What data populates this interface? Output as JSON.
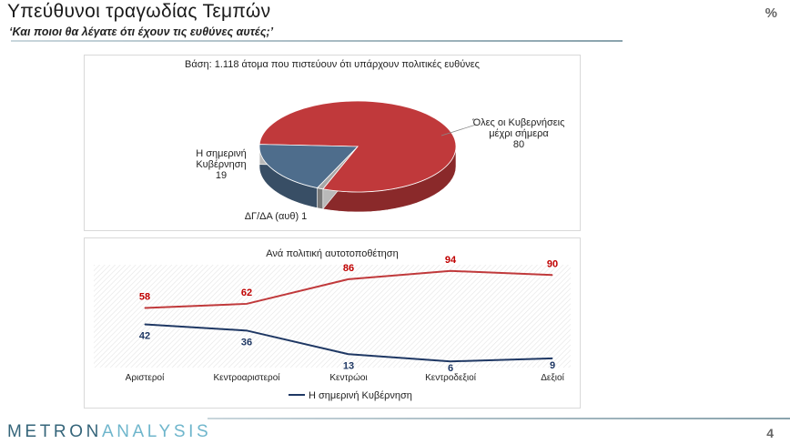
{
  "slide": {
    "title": "Υπεύθυνοι τραγωδίας Τεμπών",
    "subtitle": "‘Και ποιοι θα λέγατε ότι έχουν τις ευθύνες αυτές;’",
    "unit_mark": "%",
    "page_number": "4",
    "logo_part1": "METRON",
    "logo_part2": "ANALYSIS"
  },
  "colors": {
    "red": "#c0393b",
    "navy": "#1f3864",
    "blue_gray": "#4e6d8c",
    "accent_text_red": "#c00000"
  },
  "chart_data": [
    {
      "type": "pie",
      "subtitle": "Βάση: 1.118 άτομα που πιστεύουν ότι υπάρχουν πολιτικές ευθύνες",
      "slices": [
        {
          "label_lines": [
            "Όλες οι Κυβερνήσεις",
            "μέχρι σήμερα",
            "80"
          ],
          "value": 80,
          "color": "#c0393b"
        },
        {
          "label_lines": [
            "ΔΓ/ΔΑ (αυθ) 1"
          ],
          "value": 1,
          "color": "#a8a8a8"
        },
        {
          "label_lines": [
            "Η σημερινή",
            "Κυβέρνηση",
            "19"
          ],
          "value": 19,
          "color": "#4e6d8c"
        }
      ]
    },
    {
      "type": "line",
      "title": "Ανά πολιτική αυτοτοποθέτηση",
      "categories": [
        "Αριστεροί",
        "Κεντροαριστεροί",
        "Κεντρώοι",
        "Κεντροδεξιοί",
        "Δεξιοί"
      ],
      "series": [
        {
          "name": "",
          "color": "#c0393b",
          "values": [
            58,
            62,
            86,
            94,
            90
          ]
        },
        {
          "name": "Η σημερινή Κυβέρνηση",
          "color": "#1f3864",
          "values": [
            42,
            36,
            13,
            6,
            9
          ]
        }
      ],
      "ylim": [
        0,
        100
      ],
      "legend": "bottom"
    }
  ]
}
